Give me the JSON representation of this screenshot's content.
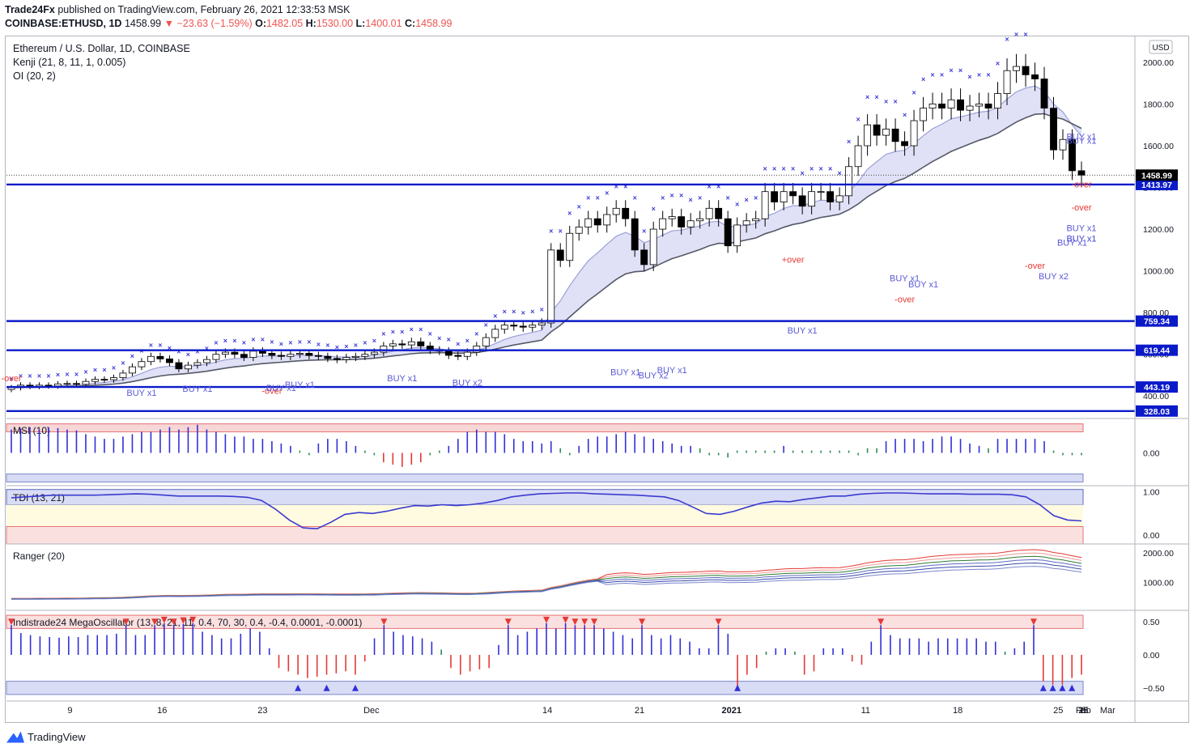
{
  "header": {
    "publisher": "Trade24Fx",
    "published_text": " published on TradingView.com, February 26, 2021 12:33:53 MSK",
    "symbol_line": "COINBASE:ETHUSD, 1D",
    "last": "1458.99",
    "change": "−23.63 (−1.59%)",
    "o_label": "O:",
    "o": "1482.05",
    "h_label": "H:",
    "h": "1530.00",
    "l_label": "L:",
    "l": "1400.01",
    "c_label": "C:",
    "c": "1458.99"
  },
  "legend": {
    "title": "Ethereum / U.S. Dollar, 1D, COINBASE",
    "ind1": "Kenji (21, 8, 11, 1, 0.005)",
    "ind2": "OI (20, 2)"
  },
  "currency_badge": "USD",
  "footer": {
    "brand": "TradingView"
  },
  "colors": {
    "up": "#ffffff",
    "down": "#000000",
    "level": "#0b1ac9",
    "marker": "#3d3dd8",
    "signal": "#5a5ad6",
    "over": "#e53935",
    "band": "#c7c8ef",
    "line_dark": "#555966"
  },
  "chart_data": [
    {
      "type": "candlestick",
      "title": "Ethereum / U.S. Dollar, 1D, COINBASE",
      "x_ticks": [
        "9",
        "16",
        "23",
        "Dec",
        "14",
        "21",
        "2021",
        "11",
        "18",
        "25",
        "Feb",
        "8",
        "15",
        "22",
        "Mar"
      ],
      "y_ticks": [
        "2000.00",
        "1800.00",
        "1600.00",
        "1400.00",
        "1200.00",
        "1000.00",
        "800.00",
        "600.00",
        "400.00"
      ],
      "ylim": [
        300,
        2120
      ],
      "closes": [
        440,
        452,
        446,
        452,
        448,
        458,
        460,
        456,
        470,
        480,
        478,
        488,
        510,
        540,
        565,
        590,
        578,
        560,
        530,
        548,
        560,
        575,
        600,
        610,
        600,
        585,
        615,
        605,
        595,
        590,
        600,
        605,
        594,
        590,
        580,
        575,
        585,
        590,
        600,
        610,
        640,
        650,
        645,
        660,
        640,
        620,
        615,
        595,
        590,
        610,
        640,
        680,
        720,
        740,
        735,
        730,
        740,
        750,
        1100,
        1050,
        1180,
        1210,
        1250,
        1220,
        1270,
        1300,
        1250,
        1100,
        1030,
        1200,
        1250,
        1260,
        1210,
        1240,
        1250,
        1300,
        1250,
        1120,
        1220,
        1240,
        1250,
        1380,
        1330,
        1380,
        1360,
        1310,
        1380,
        1380,
        1330,
        1360,
        1500,
        1600,
        1700,
        1650,
        1680,
        1620,
        1600,
        1720,
        1780,
        1800,
        1780,
        1820,
        1770,
        1790,
        1800,
        1780,
        1850,
        1960,
        1980,
        1940,
        1920,
        1780,
        1580,
        1630,
        1480,
        1458.99
      ],
      "last_price": "1458.99",
      "levels": [
        "1413.97",
        "759.34",
        "619.44",
        "443.19",
        "328.03"
      ],
      "signals": [
        {
          "text": "-over",
          "i": 0,
          "price": 470,
          "where": "above"
        },
        {
          "text": "BUY x1",
          "i": 14,
          "price": 400,
          "where": "below"
        },
        {
          "text": "BUY x1",
          "i": 20,
          "price": 420,
          "where": "below"
        },
        {
          "text": "-over",
          "i": 28,
          "price": 410,
          "where": "below"
        },
        {
          "text": "BUY x1",
          "i": 29,
          "price": 425,
          "where": "below"
        },
        {
          "text": "BUY x1",
          "i": 31,
          "price": 440,
          "where": "below"
        },
        {
          "text": "BUY x1",
          "i": 42,
          "price": 470,
          "where": "below"
        },
        {
          "text": "BUY x2",
          "i": 49,
          "price": 450,
          "where": "below"
        },
        {
          "text": "BUY x1",
          "i": 66,
          "price": 500,
          "where": "below"
        },
        {
          "text": "BUY x2",
          "i": 69,
          "price": 485,
          "where": "below"
        },
        {
          "text": "BUY x1",
          "i": 71,
          "price": 510,
          "where": "below"
        },
        {
          "text": "+over",
          "i": 84,
          "price": 1040,
          "where": "above"
        },
        {
          "text": "BUY x1",
          "i": 85,
          "price": 700,
          "where": "below"
        },
        {
          "text": "BUY x1",
          "i": 96,
          "price": 950,
          "where": "below"
        },
        {
          "text": "-over",
          "i": 96,
          "price": 850,
          "where": "below"
        },
        {
          "text": "BUY x1",
          "i": 98,
          "price": 920,
          "where": "below"
        },
        {
          "text": "-over",
          "i": 110,
          "price": 1010,
          "where": "below"
        },
        {
          "text": "BUY x2",
          "i": 112,
          "price": 960,
          "where": "below"
        },
        {
          "text": "BUY x1",
          "i": 117,
          "price": 1140,
          "where": "below"
        },
        {
          "text": "BUY x1",
          "i": 114,
          "price": 1120,
          "where": "below"
        },
        {
          "text": "BUY x1",
          "i": 123,
          "price": 1140,
          "where": "below"
        },
        {
          "text": "BUY x1",
          "i": 129,
          "price": 1190,
          "where": "below"
        },
        {
          "text": "BUY x1",
          "i": 149,
          "price": 1610,
          "where": "below"
        },
        {
          "text": "BUY x1",
          "i": 152,
          "price": 1630,
          "where": "below"
        },
        {
          "text": "-over",
          "i": 158,
          "price": 1400,
          "where": "below"
        },
        {
          "text": "-over",
          "i": 160,
          "price": 1290,
          "where": "below"
        }
      ]
    },
    {
      "type": "bar",
      "title": "MSI (10)",
      "y_ticks": [
        "0.00"
      ],
      "ylim": [
        -0.7,
        0.7
      ],
      "values": [
        0.5,
        0.52,
        0.55,
        0.5,
        0.55,
        0.53,
        0.5,
        0.48,
        0.4,
        0.35,
        0.3,
        0.3,
        0.35,
        0.4,
        0.45,
        0.45,
        0.5,
        0.55,
        0.5,
        0.55,
        0.6,
        0.5,
        0.45,
        0.4,
        0.35,
        0.35,
        0.3,
        0.3,
        0.25,
        0.2,
        0.15,
        0.05,
        -0.05,
        0.2,
        0.3,
        0.3,
        0.25,
        0.15,
        0.05,
        -0.05,
        -0.2,
        -0.25,
        -0.3,
        -0.25,
        -0.2,
        -0.05,
        0.05,
        0.15,
        0.3,
        0.45,
        0.5,
        0.45,
        0.45,
        0.4,
        0.3,
        0.25,
        0.25,
        0.2,
        0.25,
        0.1,
        -0.05,
        0.15,
        0.3,
        0.35,
        0.35,
        0.4,
        0.45,
        0.4,
        0.35,
        0.3,
        0.25,
        0.2,
        0.15,
        0.15,
        0.1,
        -0.05,
        -0.05,
        -0.1,
        0.05,
        0.05,
        0.05,
        0.05,
        0.05,
        0.15,
        0.05,
        0.05,
        0.05,
        0.05,
        0.05,
        0.05,
        0.05,
        -0.05,
        0.1,
        0.1,
        0.25,
        0.3,
        0.3,
        0.3,
        0.25,
        0.3,
        0.35,
        0.35,
        0.3,
        0.2,
        0.15,
        0.1,
        0.3,
        0.3,
        0.3,
        0.3,
        0.3,
        0.25,
        0.05,
        -0.05,
        -0.05,
        -0.05
      ]
    },
    {
      "type": "line",
      "title": "TDI (13, 21)",
      "y_ticks": [
        "1.00",
        "0.00"
      ],
      "ylim": [
        -0.2,
        1.1
      ],
      "values": [
        0.86,
        0.88,
        0.9,
        0.92,
        0.92,
        0.92,
        0.92,
        0.93,
        0.94,
        0.95,
        0.94,
        0.92,
        0.9,
        0.9,
        0.9,
        0.9,
        0.89,
        0.87,
        0.8,
        0.6,
        0.35,
        0.17,
        0.15,
        0.3,
        0.48,
        0.52,
        0.5,
        0.55,
        0.62,
        0.68,
        0.67,
        0.7,
        0.68,
        0.7,
        0.74,
        0.8,
        0.88,
        0.92,
        0.95,
        0.96,
        0.97,
        0.97,
        0.95,
        0.94,
        0.93,
        0.92,
        0.9,
        0.88,
        0.8,
        0.65,
        0.5,
        0.48,
        0.55,
        0.65,
        0.74,
        0.78,
        0.77,
        0.82,
        0.86,
        0.9,
        0.9,
        0.94,
        0.96,
        0.97,
        0.97,
        0.96,
        0.95,
        0.95,
        0.95,
        0.94,
        0.94,
        0.94,
        0.93,
        0.88,
        0.7,
        0.45,
        0.35,
        0.33
      ]
    },
    {
      "type": "line",
      "title": "Ranger (20)",
      "y_ticks": [
        "2000.00",
        "1000.00"
      ],
      "ylim": [
        50,
        2250
      ]
    },
    {
      "type": "bar",
      "title": "Indistrade24 MegaOscillator (13, 8, 21, 11, 0.4, 70, 30, 0.4, -0.4, 0.0001, -0.0001)",
      "y_ticks": [
        "0.50",
        "0.00",
        "−0.50"
      ],
      "ylim": [
        -0.65,
        0.65
      ],
      "values": [
        0.45,
        0.33,
        0.3,
        0.28,
        0.27,
        0.26,
        0.28,
        0.27,
        0.3,
        0.3,
        0.3,
        0.32,
        0.45,
        0.3,
        0.3,
        0.45,
        0.48,
        0.45,
        0.47,
        0.48,
        0.35,
        0.3,
        0.25,
        0.25,
        0.32,
        0.4,
        0.35,
        0.1,
        -0.2,
        -0.25,
        -0.3,
        -0.35,
        -0.33,
        -0.3,
        -0.28,
        -0.25,
        -0.3,
        -0.1,
        0.25,
        0.45,
        0.35,
        0.3,
        0.28,
        0.25,
        0.2,
        0.08,
        -0.2,
        -0.3,
        -0.25,
        -0.22,
        -0.2,
        0.15,
        0.45,
        0.3,
        0.35,
        0.4,
        0.48,
        0.4,
        0.48,
        0.45,
        0.45,
        0.45,
        0.4,
        0.35,
        0.3,
        0.25,
        0.45,
        0.3,
        0.25,
        0.3,
        0.25,
        0.2,
        0.1,
        0.1,
        0.45,
        0.32,
        -0.55,
        -0.3,
        -0.2,
        0.05,
        0.1,
        0.1,
        0.05,
        -0.3,
        -0.25,
        0.1,
        0.1,
        0.1,
        -0.1,
        -0.15,
        0.2,
        0.45,
        0.3,
        0.25,
        0.25,
        0.25,
        0.2,
        0.25,
        0.25,
        0.25,
        0.25,
        0.25,
        0.2,
        0.2,
        0.05,
        0.1,
        0.2,
        0.45,
        -0.4,
        -0.45,
        -0.45,
        -0.35,
        -0.3
      ]
    }
  ]
}
